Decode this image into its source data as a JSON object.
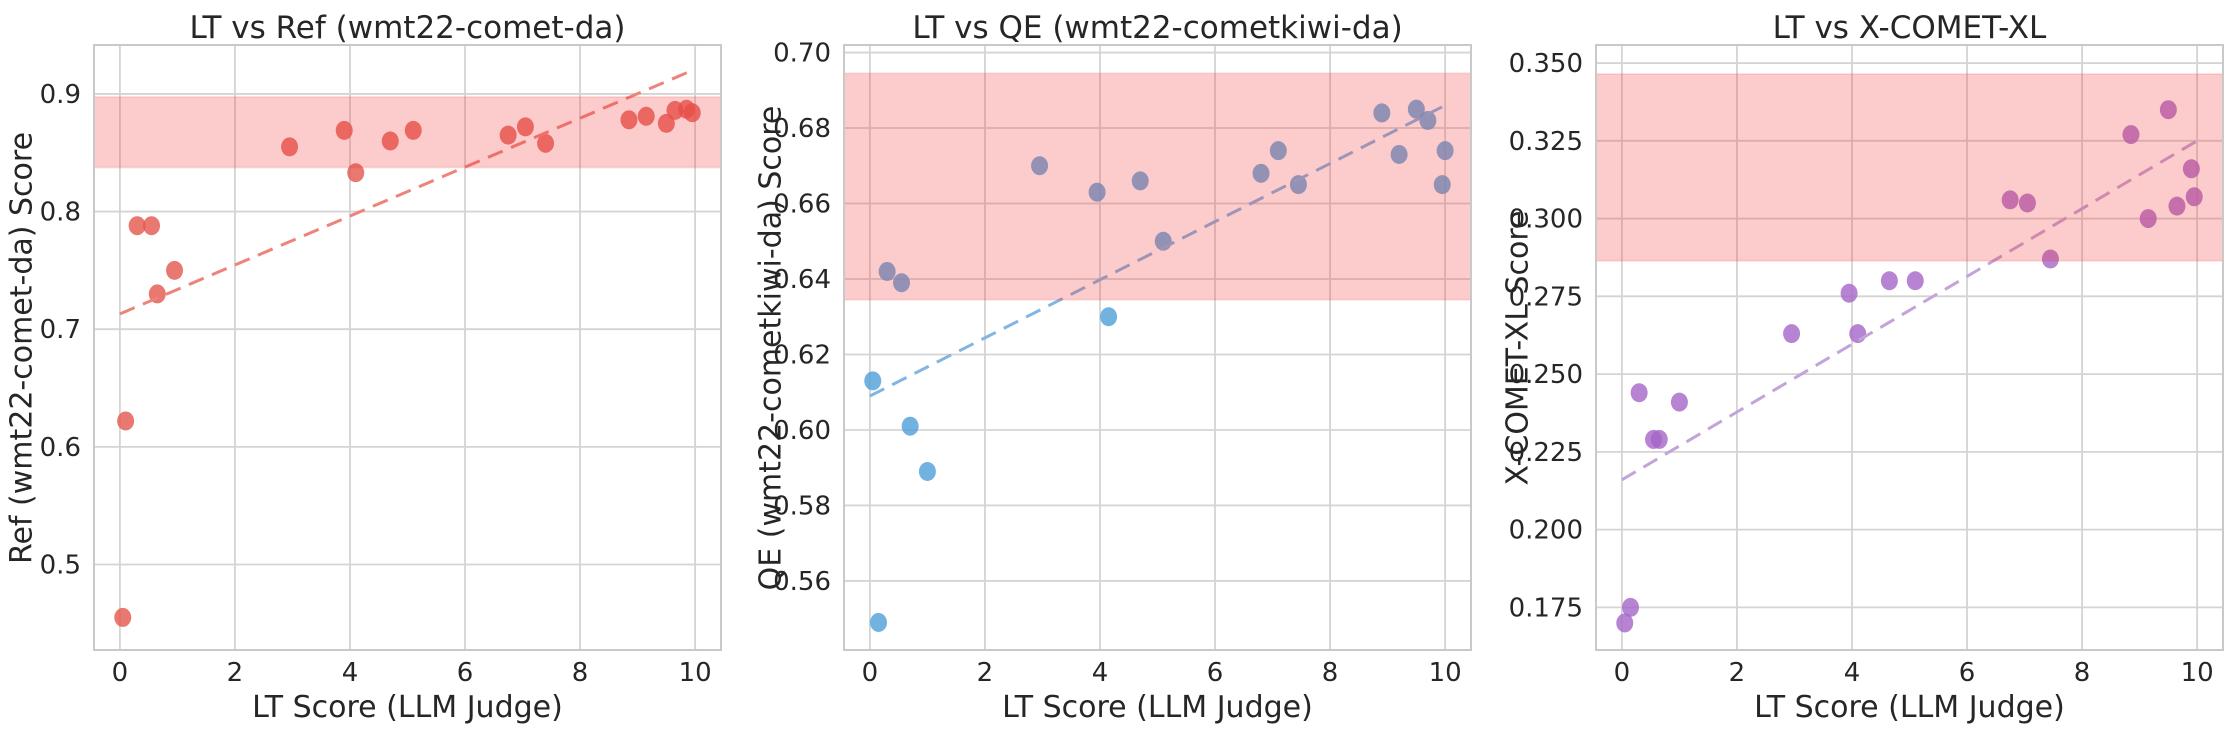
{
  "figure": {
    "background": "#ffffff",
    "grid": true,
    "legend": "none"
  },
  "chart_data": [
    {
      "type": "scatter",
      "title": "LT vs Ref (wmt22-comet-da)",
      "xlabel": "LT Score (LLM Judge)",
      "ylabel": "Ref (wmt22-comet-da) Score",
      "xlim": [
        -0.45,
        10.45
      ],
      "ylim": [
        0.4273,
        0.9416
      ],
      "xticks": [
        0,
        2,
        4,
        6,
        8,
        10
      ],
      "xtick_labels": [
        "0",
        "2",
        "4",
        "6",
        "8",
        "10"
      ],
      "yticks": [
        0.5,
        0.6,
        0.7,
        0.8,
        0.9
      ],
      "ytick_labels": [
        "0.5",
        "0.6",
        "0.7",
        "0.8",
        "0.9"
      ],
      "band": {
        "ymin": 0.8375,
        "ymax": 0.8975
      },
      "trend": {
        "x": [
          0,
          10
        ],
        "y": [
          0.713,
          0.921
        ]
      },
      "points": [
        [
          0.05,
          0.455
        ],
        [
          0.1,
          0.622
        ],
        [
          0.3,
          0.788
        ],
        [
          0.55,
          0.788
        ],
        [
          0.65,
          0.73
        ],
        [
          0.95,
          0.75
        ],
        [
          2.95,
          0.855
        ],
        [
          3.9,
          0.869
        ],
        [
          4.1,
          0.833
        ],
        [
          4.7,
          0.86
        ],
        [
          5.1,
          0.869
        ],
        [
          6.75,
          0.865
        ],
        [
          7.05,
          0.872
        ],
        [
          7.4,
          0.858
        ],
        [
          8.85,
          0.878
        ],
        [
          9.15,
          0.881
        ],
        [
          9.5,
          0.875
        ],
        [
          9.65,
          0.886
        ],
        [
          9.85,
          0.887
        ],
        [
          9.95,
          0.884
        ]
      ],
      "colors": {
        "point": "#e4564d",
        "trend": "#ee837b"
      }
    },
    {
      "type": "scatter",
      "title": "LT vs QE (wmt22-cometkiwi-da)",
      "xlabel": "LT Score (LLM Judge)",
      "ylabel": "QE (wmt22-cometkiwi-da) Score",
      "xlim": [
        -0.45,
        10.45
      ],
      "ylim": [
        0.5417,
        0.702
      ],
      "xticks": [
        0,
        2,
        4,
        6,
        8,
        10
      ],
      "xtick_labels": [
        "0",
        "2",
        "4",
        "6",
        "8",
        "10"
      ],
      "yticks": [
        0.56,
        0.58,
        0.6,
        0.62,
        0.64,
        0.66,
        0.68,
        0.7
      ],
      "ytick_labels": [
        "0.56",
        "0.58",
        "0.60",
        "0.62",
        "0.64",
        "0.66",
        "0.68",
        "0.70"
      ],
      "band": {
        "ymin": 0.6345,
        "ymax": 0.6945
      },
      "trend": {
        "x": [
          0,
          10
        ],
        "y": [
          0.609,
          0.686
        ]
      },
      "points": [
        [
          0.05,
          0.613
        ],
        [
          0.15,
          0.549
        ],
        [
          0.3,
          0.642
        ],
        [
          0.55,
          0.639
        ],
        [
          0.7,
          0.601
        ],
        [
          1.0,
          0.589
        ],
        [
          2.95,
          0.67
        ],
        [
          3.95,
          0.663
        ],
        [
          4.15,
          0.63
        ],
        [
          4.7,
          0.666
        ],
        [
          5.1,
          0.65
        ],
        [
          6.8,
          0.668
        ],
        [
          7.1,
          0.674
        ],
        [
          7.45,
          0.665
        ],
        [
          8.9,
          0.684
        ],
        [
          9.2,
          0.673
        ],
        [
          9.5,
          0.685
        ],
        [
          9.7,
          0.682
        ],
        [
          9.95,
          0.665
        ],
        [
          10.0,
          0.674
        ]
      ],
      "colors": {
        "point": "#4f9fd9",
        "trend": "#82b5e2"
      }
    },
    {
      "type": "scatter",
      "title": "LT vs X-COMET-XL",
      "xlabel": "LT Score (LLM Judge)",
      "ylabel": "X-COMET-XL Score",
      "xlim": [
        -0.45,
        10.45
      ],
      "ylim": [
        0.1613,
        0.3558
      ],
      "xticks": [
        0,
        2,
        4,
        6,
        8,
        10
      ],
      "xtick_labels": [
        "0",
        "2",
        "4",
        "6",
        "8",
        "10"
      ],
      "yticks": [
        0.175,
        0.2,
        0.225,
        0.25,
        0.275,
        0.3,
        0.325,
        0.35
      ],
      "ytick_labels": [
        "0.175",
        "0.200",
        "0.225",
        "0.250",
        "0.275",
        "0.300",
        "0.325",
        "0.350"
      ],
      "band": {
        "ymin": 0.2864,
        "ymax": 0.3465
      },
      "trend": {
        "x": [
          0,
          10
        ],
        "y": [
          0.216,
          0.325
        ]
      },
      "points": [
        [
          0.05,
          0.17
        ],
        [
          0.15,
          0.175
        ],
        [
          0.3,
          0.244
        ],
        [
          0.55,
          0.229
        ],
        [
          0.65,
          0.229
        ],
        [
          1.0,
          0.241
        ],
        [
          2.95,
          0.263
        ],
        [
          3.95,
          0.276
        ],
        [
          4.1,
          0.263
        ],
        [
          4.65,
          0.28
        ],
        [
          5.1,
          0.28
        ],
        [
          6.75,
          0.306
        ],
        [
          7.05,
          0.305
        ],
        [
          7.45,
          0.287
        ],
        [
          8.85,
          0.327
        ],
        [
          9.15,
          0.3
        ],
        [
          9.5,
          0.335
        ],
        [
          9.65,
          0.304
        ],
        [
          9.9,
          0.316
        ],
        [
          9.95,
          0.307
        ]
      ],
      "colors": {
        "point": "#a565c8",
        "trend": "#c3a4d9"
      }
    }
  ],
  "style": {
    "band_fill": "#f23535",
    "band_fill_opacity": 0.255,
    "band_edge_opacity": 0.13,
    "grid_color": "#d4d4d4",
    "border_color": "#c9c9c9",
    "text_color": "#262626"
  }
}
